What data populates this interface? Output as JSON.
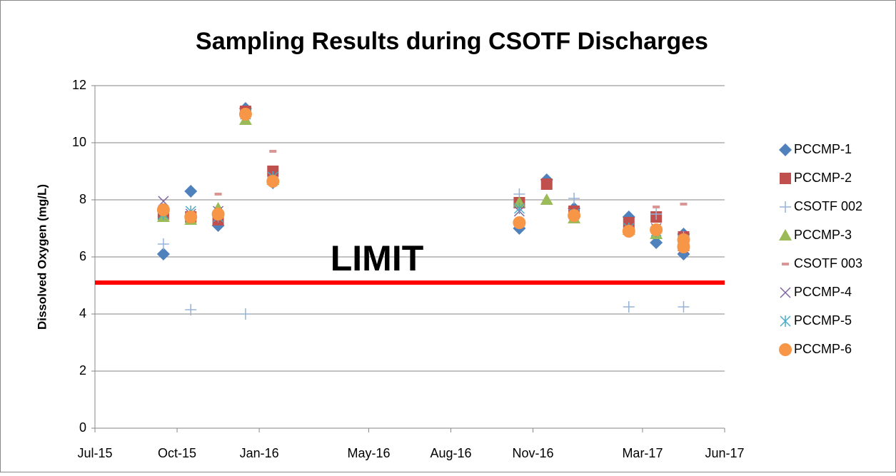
{
  "chart_data": {
    "type": "scatter",
    "title": "Sampling Results during CSOTF Discharges",
    "y_label": "Dissolved Oxygen (mg/L)",
    "x": [
      "2015-09",
      "2015-10",
      "2015-11",
      "2015-12",
      "2016-01",
      "2016-10",
      "2016-11",
      "2016-12",
      "2017-02",
      "2017-03",
      "2017-04",
      "2017-04"
    ],
    "series": [
      {
        "name": "PCCMP-1",
        "color": "#4f81bd",
        "marker": "diamond",
        "values": [
          6.1,
          8.3,
          7.1,
          11.2,
          8.6,
          7.0,
          8.7,
          7.7,
          7.4,
          6.5,
          6.1,
          6.8
        ]
      },
      {
        "name": "PCCMP-2",
        "color": "#c0504d",
        "marker": "square",
        "values": [
          7.5,
          7.4,
          7.3,
          11.1,
          9.0,
          7.9,
          8.55,
          7.6,
          7.2,
          7.4,
          6.4,
          6.7
        ]
      },
      {
        "name": "CSOTF 002",
        "color": "#95b3d7",
        "marker": "plus",
        "values": [
          6.45,
          4.15,
          7.5,
          4.0,
          8.8,
          8.2,
          null,
          8.05,
          4.25,
          7.5,
          6.7,
          4.25
        ]
      },
      {
        "name": "PCCMP-3",
        "color": "#9bbb59",
        "marker": "triangle",
        "values": [
          7.4,
          7.3,
          7.7,
          10.8,
          8.7,
          7.9,
          8.0,
          7.35,
          6.95,
          6.8,
          6.6,
          6.55
        ]
      },
      {
        "name": "CSOTF 003",
        "color": "#d99694",
        "marker": "dash",
        "values": [
          null,
          null,
          8.2,
          null,
          9.7,
          null,
          null,
          null,
          null,
          7.75,
          null,
          7.85
        ]
      },
      {
        "name": "PCCMP-4",
        "color": "#8064a2",
        "marker": "x",
        "values": [
          7.95,
          7.5,
          7.6,
          11.0,
          8.8,
          7.6,
          null,
          7.5,
          7.0,
          7.0,
          6.5,
          6.3
        ]
      },
      {
        "name": "PCCMP-5",
        "color": "#4bacc6",
        "marker": "star",
        "values": [
          7.5,
          7.6,
          7.4,
          11.0,
          8.8,
          7.7,
          null,
          7.5,
          7.0,
          6.9,
          6.5,
          6.6
        ]
      },
      {
        "name": "PCCMP-6",
        "color": "#f79646",
        "marker": "circle",
        "values": [
          7.65,
          7.4,
          7.5,
          11.0,
          8.65,
          7.2,
          null,
          7.45,
          6.9,
          6.95,
          6.35,
          6.6
        ]
      }
    ],
    "xlim": [
      "2015-07",
      "2017-06"
    ],
    "xticks": [
      {
        "value": "2015-07",
        "label": "Jul-15"
      },
      {
        "value": "2015-10",
        "label": "Oct-15"
      },
      {
        "value": "2016-01",
        "label": "Jan-16"
      },
      {
        "value": "2016-05",
        "label": "May-16"
      },
      {
        "value": "2016-08",
        "label": "Aug-16"
      },
      {
        "value": "2016-11",
        "label": "Nov-16"
      },
      {
        "value": "2017-03",
        "label": "Mar-17"
      },
      {
        "value": "2017-06",
        "label": "Jun-17"
      }
    ],
    "ylim": [
      0,
      12
    ],
    "yticks": [
      0,
      2,
      4,
      6,
      8,
      10,
      12
    ],
    "grid": true,
    "legend": "right",
    "limit": {
      "label": "LIMIT",
      "value": 5.1,
      "color": "#ff0000"
    }
  }
}
